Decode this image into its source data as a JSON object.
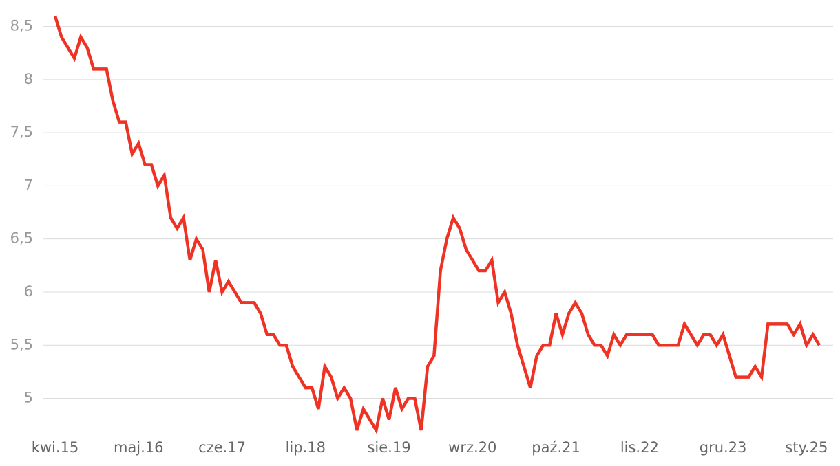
{
  "chart_data": {
    "type": "line",
    "categories": [
      "kwi.15",
      null,
      null,
      null,
      null,
      null,
      null,
      null,
      null,
      null,
      null,
      null,
      null,
      "maj.16",
      null,
      null,
      null,
      null,
      null,
      null,
      null,
      null,
      null,
      null,
      null,
      null,
      "cze.17",
      null,
      null,
      null,
      null,
      null,
      null,
      null,
      null,
      null,
      null,
      null,
      null,
      "lip.18",
      null,
      null,
      null,
      null,
      null,
      null,
      null,
      null,
      null,
      null,
      null,
      null,
      "sie.19",
      null,
      null,
      null,
      null,
      null,
      null,
      null,
      null,
      null,
      null,
      null,
      null,
      "wrz.20",
      null,
      null,
      null,
      null,
      null,
      null,
      null,
      null,
      null,
      null,
      null,
      null,
      "paź.21",
      null,
      null,
      null,
      null,
      null,
      null,
      null,
      null,
      null,
      null,
      null,
      null,
      "lis.22",
      null,
      null,
      null,
      null,
      null,
      null,
      null,
      null,
      null,
      null,
      null,
      null,
      "gru.23",
      null,
      null,
      null,
      null,
      null,
      null,
      null,
      null,
      null,
      null,
      null,
      null,
      "sty.25",
      null,
      null
    ],
    "series": [
      {
        "color": "#ee3224",
        "values": [
          8.6,
          8.4,
          8.3,
          8.2,
          8.4,
          8.3,
          8.1,
          8.1,
          8.1,
          7.8,
          7.6,
          7.6,
          7.3,
          7.4,
          7.2,
          7.2,
          7.0,
          7.1,
          6.7,
          6.6,
          6.7,
          6.3,
          6.5,
          6.4,
          6.0,
          6.3,
          6.0,
          6.1,
          6.0,
          5.9,
          5.9,
          5.9,
          5.8,
          5.6,
          5.6,
          5.5,
          5.5,
          5.3,
          5.2,
          5.1,
          5.1,
          4.9,
          5.3,
          5.2,
          5.0,
          5.1,
          5.0,
          4.7,
          4.9,
          4.8,
          4.7,
          5.0,
          4.8,
          5.1,
          4.9,
          5.0,
          5.0,
          4.7,
          5.3,
          5.4,
          6.2,
          6.5,
          6.7,
          6.6,
          6.4,
          6.3,
          6.2,
          6.2,
          6.3,
          5.9,
          6.0,
          5.8,
          5.5,
          5.3,
          5.1,
          5.4,
          5.5,
          5.5,
          5.8,
          5.6,
          5.8,
          5.9,
          5.8,
          5.6,
          5.5,
          5.5,
          5.4,
          5.6,
          5.5,
          5.6,
          5.6,
          5.6,
          5.6,
          5.6,
          5.5,
          5.5,
          5.5,
          5.5,
          5.7,
          5.6,
          5.5,
          5.6,
          5.6,
          5.5,
          5.6,
          5.4,
          5.2,
          5.2,
          5.2,
          5.3,
          5.2,
          5.7,
          5.7,
          5.7,
          5.7,
          5.6,
          5.7,
          5.5,
          5.6,
          5.5
        ]
      }
    ],
    "ylim": [
      4.68,
      8.62
    ],
    "yticks": [
      {
        "value": 5,
        "label": "5"
      },
      {
        "value": 5.5,
        "label": "5,5"
      },
      {
        "value": 6,
        "label": "6"
      },
      {
        "value": 6.5,
        "label": "6,5"
      },
      {
        "value": 7,
        "label": "7"
      },
      {
        "value": 7.5,
        "label": "7,5"
      },
      {
        "value": 8,
        "label": "8"
      },
      {
        "value": 8.5,
        "label": "8,5"
      }
    ],
    "grid": true
  }
}
